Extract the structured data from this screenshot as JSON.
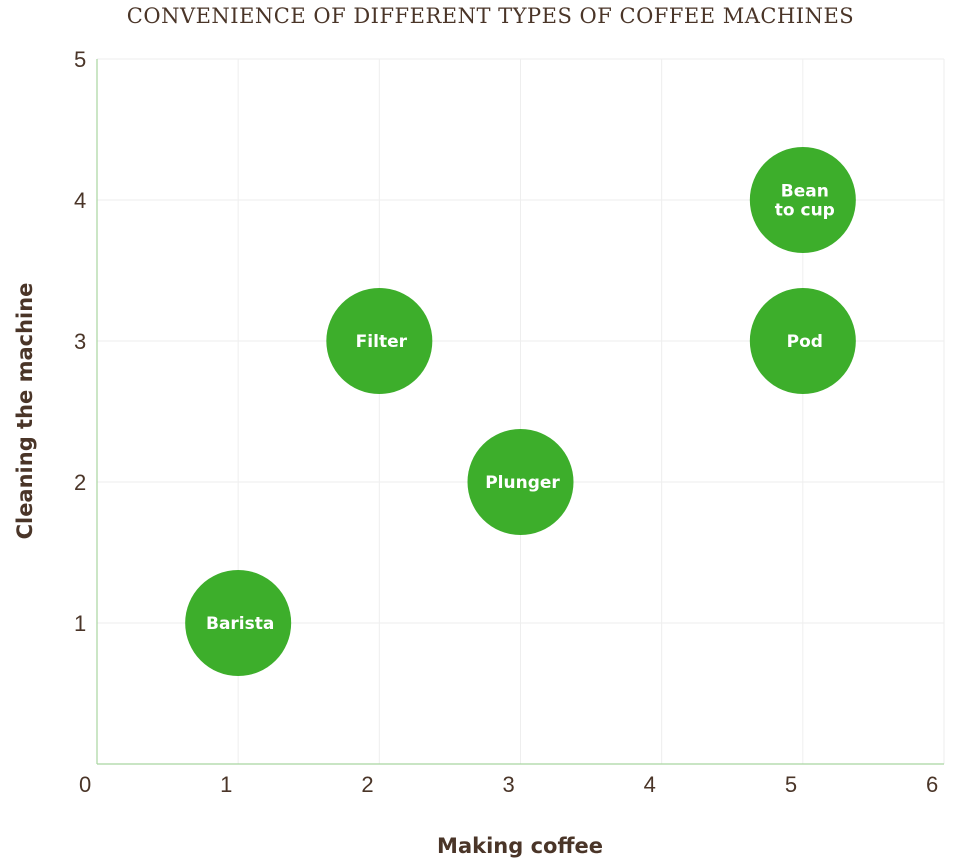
{
  "chart_data": {
    "type": "scatter",
    "title": "CONVENIENCE OF DIFFERENT TYPES OF COFFEE MACHINES",
    "xlabel": "Making coffee",
    "ylabel": "Cleaning the machine",
    "xlim": [
      0,
      6
    ],
    "ylim": [
      0,
      5
    ],
    "xticks": [
      "0",
      "1",
      "2",
      "3",
      "4",
      "5",
      "6"
    ],
    "yticks": [
      "1",
      "2",
      "3",
      "4",
      "5"
    ],
    "grid": true,
    "colors": {
      "bubble": "#3dae2b",
      "axis": "#a9d5a1",
      "grid": "#eeeeee",
      "text": "#4a3528"
    },
    "points": [
      {
        "label": "Barista",
        "x": 1,
        "y": 1
      },
      {
        "label": "Filter",
        "x": 2,
        "y": 3
      },
      {
        "label": "Plunger",
        "x": 3,
        "y": 2
      },
      {
        "label": "Bean to cup",
        "x": 5,
        "y": 4
      },
      {
        "label": "Pod",
        "x": 5,
        "y": 3
      }
    ]
  }
}
